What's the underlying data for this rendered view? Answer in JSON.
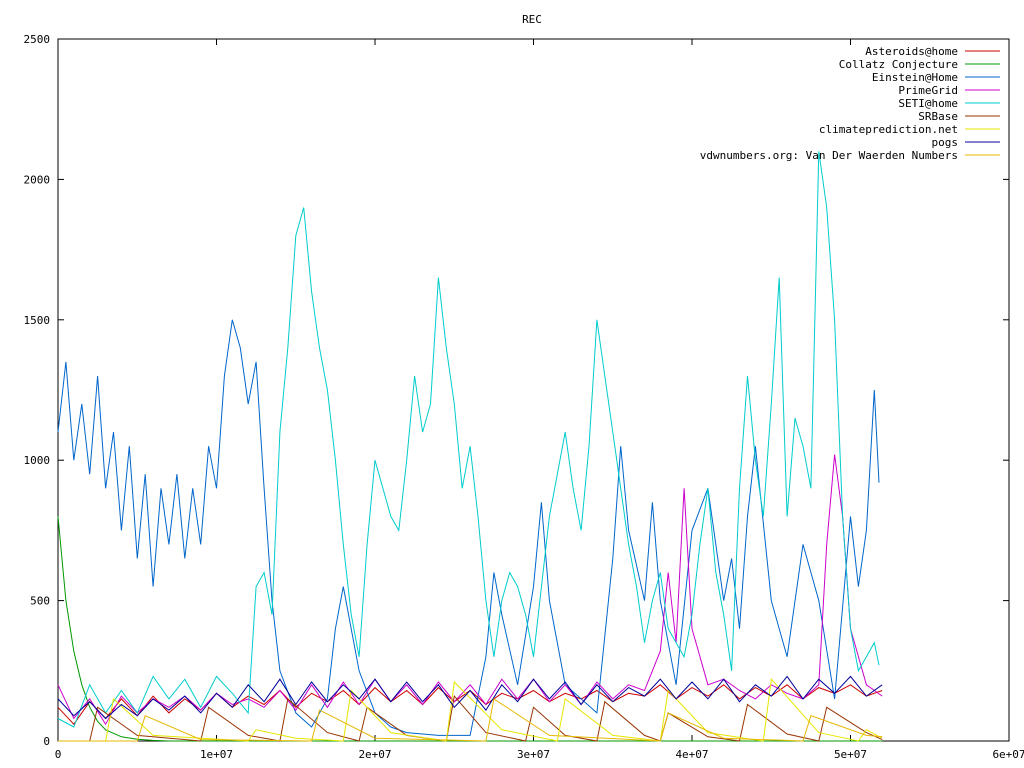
{
  "chart_data": {
    "type": "line",
    "title": "REC",
    "xlabel": "",
    "ylabel": "",
    "xlim": [
      0,
      60000000
    ],
    "ylim": [
      0,
      2500
    ],
    "x_ticks": [
      {
        "value": 0,
        "label": "0"
      },
      {
        "value": 10000000,
        "label": "1e+07"
      },
      {
        "value": 20000000,
        "label": "2e+07"
      },
      {
        "value": 30000000,
        "label": "3e+07"
      },
      {
        "value": 40000000,
        "label": "4e+07"
      },
      {
        "value": 50000000,
        "label": "5e+07"
      },
      {
        "value": 60000000,
        "label": "6e+07"
      }
    ],
    "y_ticks": [
      {
        "value": 0,
        "label": "0"
      },
      {
        "value": 500,
        "label": "500"
      },
      {
        "value": 1000,
        "label": "1000"
      },
      {
        "value": 1500,
        "label": "1500"
      },
      {
        "value": 2000,
        "label": "2000"
      },
      {
        "value": 2500,
        "label": "2500"
      }
    ],
    "grid": false,
    "legend_position": "top-right",
    "series": [
      {
        "name": "Asteroids@home",
        "color": "#cc0000",
        "x": [
          0,
          1000000,
          2000000,
          3000000,
          4000000,
          5000000,
          6000000,
          7000000,
          8000000,
          9000000,
          10000000,
          11000000,
          12000000,
          13000000,
          14000000,
          15000000,
          16000000,
          17000000,
          18000000,
          19000000,
          20000000,
          21000000,
          22000000,
          23000000,
          24000000,
          25000000,
          26000000,
          27000000,
          28000000,
          29000000,
          30000000,
          31000000,
          32000000,
          33000000,
          34000000,
          35000000,
          36000000,
          37000000,
          38000000,
          39000000,
          40000000,
          41000000,
          42000000,
          43000000,
          44000000,
          45000000,
          46000000,
          47000000,
          48000000,
          49000000,
          50000000,
          51000000,
          52000000
        ],
        "y": [
          120,
          60,
          140,
          80,
          150,
          90,
          160,
          100,
          150,
          110,
          170,
          120,
          160,
          130,
          180,
          120,
          170,
          140,
          180,
          130,
          190,
          140,
          180,
          130,
          190,
          140,
          180,
          130,
          170,
          150,
          180,
          140,
          170,
          150,
          180,
          140,
          170,
          160,
          200,
          150,
          190,
          160,
          200,
          150,
          190,
          160,
          200,
          150,
          190,
          170,
          200,
          160,
          180
        ]
      },
      {
        "name": "Collatz Conjecture",
        "color": "#009900",
        "x": [
          0,
          500000,
          1000000,
          1500000,
          2000000,
          2500000,
          3000000,
          4000000,
          5000000,
          6000000,
          7000000,
          8000000,
          52000000
        ],
        "y": [
          800,
          500,
          320,
          200,
          120,
          70,
          40,
          15,
          6,
          2,
          0,
          0,
          0
        ]
      },
      {
        "name": "Einstein@Home",
        "color": "#0066cc",
        "x": [
          0,
          500000,
          1000000,
          1500000,
          2000000,
          2500000,
          3000000,
          3500000,
          4000000,
          4500000,
          5000000,
          5500000,
          6000000,
          6500000,
          7000000,
          7500000,
          8000000,
          8500000,
          9000000,
          9500000,
          10000000,
          10500000,
          11000000,
          11500000,
          12000000,
          12500000,
          13000000,
          13500000,
          14000000,
          15000000,
          16000000,
          17000000,
          17500000,
          18000000,
          19000000,
          20000000,
          21000000,
          22000000,
          24000000,
          26000000,
          27000000,
          27500000,
          28000000,
          29000000,
          30000000,
          30500000,
          31000000,
          32000000,
          34000000,
          35000000,
          35500000,
          36000000,
          37000000,
          37500000,
          38000000,
          39000000,
          40000000,
          41000000,
          42000000,
          42500000,
          43000000,
          43500000,
          44000000,
          45000000,
          46000000,
          47000000,
          48000000,
          49000000,
          50000000,
          50500000,
          51000000,
          51500000,
          51800000
        ],
        "y": [
          1100,
          1350,
          1000,
          1200,
          950,
          1300,
          900,
          1100,
          750,
          1050,
          650,
          950,
          550,
          900,
          700,
          950,
          650,
          900,
          700,
          1050,
          900,
          1300,
          1500,
          1400,
          1200,
          1350,
          900,
          500,
          250,
          100,
          50,
          150,
          400,
          550,
          250,
          100,
          50,
          30,
          20,
          20,
          300,
          600,
          450,
          200,
          550,
          850,
          500,
          200,
          100,
          650,
          1050,
          750,
          500,
          850,
          500,
          200,
          750,
          900,
          500,
          650,
          400,
          800,
          1050,
          500,
          300,
          700,
          500,
          150,
          800,
          550,
          750,
          1250,
          920
        ]
      },
      {
        "name": "PrimeGrid",
        "color": "#cc00cc",
        "x": [
          0,
          1000000,
          2000000,
          3000000,
          4000000,
          5000000,
          6000000,
          7000000,
          8000000,
          9000000,
          10000000,
          11000000,
          12000000,
          13000000,
          14000000,
          15000000,
          16000000,
          17000000,
          18000000,
          19000000,
          20000000,
          21000000,
          22000000,
          23000000,
          24000000,
          25000000,
          26000000,
          27000000,
          28000000,
          29000000,
          30000000,
          31000000,
          32000000,
          33000000,
          34000000,
          35000000,
          36000000,
          37000000,
          37500000,
          38000000,
          38500000,
          39000000,
          39500000,
          40000000,
          41000000,
          42000000,
          43000000,
          44000000,
          45000000,
          46000000,
          47000000,
          48000000,
          48500000,
          49000000,
          49500000,
          50000000,
          51000000,
          52000000
        ],
        "y": [
          200,
          80,
          150,
          60,
          160,
          100,
          150,
          120,
          160,
          110,
          170,
          130,
          150,
          120,
          180,
          110,
          200,
          120,
          210,
          130,
          220,
          140,
          200,
          130,
          210,
          140,
          200,
          130,
          220,
          150,
          220,
          140,
          200,
          130,
          210,
          150,
          200,
          180,
          250,
          320,
          600,
          350,
          900,
          400,
          200,
          220,
          180,
          150,
          200,
          170,
          150,
          200,
          700,
          1020,
          800,
          400,
          200,
          160
        ]
      },
      {
        "name": "SETI@home",
        "color": "#00cccc",
        "x": [
          0,
          1000000,
          2000000,
          3000000,
          4000000,
          5000000,
          6000000,
          7000000,
          8000000,
          9000000,
          10000000,
          11000000,
          12000000,
          12500000,
          13000000,
          13500000,
          14000000,
          14500000,
          15000000,
          15500000,
          16000000,
          16500000,
          17000000,
          17500000,
          18000000,
          18500000,
          19000000,
          19500000,
          20000000,
          21000000,
          21500000,
          22000000,
          22500000,
          23000000,
          23500000,
          24000000,
          24500000,
          25000000,
          25500000,
          26000000,
          26500000,
          27000000,
          27500000,
          28000000,
          28500000,
          29000000,
          29500000,
          30000000,
          31000000,
          32000000,
          32500000,
          33000000,
          33500000,
          34000000,
          34500000,
          35000000,
          35500000,
          36000000,
          36500000,
          37000000,
          37500000,
          38000000,
          38500000,
          39000000,
          39500000,
          40000000,
          40500000,
          41000000,
          41500000,
          42000000,
          42500000,
          43000000,
          43500000,
          44000000,
          44500000,
          45000000,
          45500000,
          46000000,
          46500000,
          47000000,
          47500000,
          48000000,
          48500000,
          49000000,
          49500000,
          50000000,
          50500000,
          51000000,
          51500000,
          51800000
        ],
        "y": [
          80,
          50,
          200,
          100,
          180,
          100,
          230,
          150,
          220,
          120,
          230,
          170,
          100,
          550,
          600,
          450,
          1100,
          1400,
          1800,
          1900,
          1600,
          1400,
          1250,
          1000,
          700,
          450,
          300,
          700,
          1000,
          800,
          750,
          1000,
          1300,
          1100,
          1200,
          1650,
          1400,
          1200,
          900,
          1050,
          800,
          500,
          300,
          500,
          600,
          550,
          450,
          300,
          800,
          1100,
          900,
          750,
          1050,
          1500,
          1300,
          1100,
          900,
          700,
          550,
          350,
          500,
          600,
          400,
          350,
          300,
          450,
          700,
          900,
          600,
          450,
          250,
          900,
          1300,
          1000,
          800,
          1200,
          1650,
          800,
          1150,
          1050,
          900,
          2100,
          1900,
          1500,
          800,
          400,
          250,
          300,
          350,
          270
        ]
      },
      {
        "name": "SRBase",
        "color": "#993300",
        "x": [
          0,
          2000000,
          2500000,
          5000000,
          9000000,
          9500000,
          12000000,
          14000000,
          14500000,
          17000000,
          19000000,
          19500000,
          22000000,
          24500000,
          25000000,
          27000000,
          29500000,
          30000000,
          32000000,
          34000000,
          34500000,
          37000000,
          38000000,
          38500000,
          41000000,
          43000000,
          43500000,
          46000000,
          48000000,
          48500000,
          51000000,
          52000000
        ],
        "y": [
          0,
          0,
          120,
          20,
          0,
          120,
          20,
          0,
          150,
          30,
          0,
          120,
          20,
          0,
          160,
          30,
          0,
          120,
          20,
          0,
          140,
          20,
          0,
          100,
          15,
          0,
          130,
          25,
          0,
          120,
          30,
          5
        ]
      },
      {
        "name": "climateprediction.net",
        "color": "#e6e600",
        "x": [
          0,
          3000000,
          3500000,
          6000000,
          12000000,
          12500000,
          15000000,
          18000000,
          18500000,
          21000000,
          24500000,
          25000000,
          28000000,
          31500000,
          32000000,
          35000000,
          38000000,
          38500000,
          41000000,
          44500000,
          45000000,
          48000000,
          50500000,
          51000000,
          52000000
        ],
        "y": [
          0,
          0,
          150,
          20,
          0,
          40,
          10,
          0,
          180,
          30,
          0,
          210,
          40,
          0,
          150,
          20,
          0,
          180,
          30,
          0,
          220,
          30,
          0,
          40,
          10
        ]
      },
      {
        "name": "pogs",
        "color": "#000099",
        "x": [
          0,
          1000000,
          2000000,
          3000000,
          4000000,
          5000000,
          6000000,
          7000000,
          8000000,
          9000000,
          10000000,
          11000000,
          12000000,
          13000000,
          14000000,
          15000000,
          16000000,
          17000000,
          18000000,
          19000000,
          20000000,
          21000000,
          22000000,
          23000000,
          24000000,
          25000000,
          26000000,
          27000000,
          28000000,
          29000000,
          30000000,
          31000000,
          32000000,
          33000000,
          34000000,
          35000000,
          36000000,
          37000000,
          38000000,
          39000000,
          40000000,
          41000000,
          42000000,
          43000000,
          44000000,
          45000000,
          46000000,
          47000000,
          48000000,
          49000000,
          50000000,
          51000000,
          52000000
        ],
        "y": [
          150,
          90,
          140,
          80,
          130,
          90,
          150,
          110,
          160,
          100,
          170,
          120,
          200,
          140,
          220,
          130,
          210,
          140,
          200,
          150,
          220,
          140,
          210,
          140,
          200,
          120,
          180,
          110,
          200,
          140,
          220,
          150,
          210,
          130,
          200,
          140,
          190,
          160,
          220,
          150,
          210,
          150,
          220,
          140,
          200,
          160,
          230,
          150,
          220,
          170,
          230,
          160,
          200
        ]
      },
      {
        "name": "vdwnumbers.org: Van Der Waerden Numbers",
        "color": "#e6b800",
        "x": [
          0,
          5000000,
          5500000,
          9000000,
          16000000,
          16500000,
          20000000,
          27000000,
          27500000,
          31000000,
          38000000,
          38500000,
          42000000,
          47000000,
          47500000,
          51000000,
          52000000
        ],
        "y": [
          0,
          0,
          90,
          5,
          0,
          110,
          10,
          0,
          150,
          20,
          0,
          100,
          10,
          0,
          90,
          20,
          15
        ]
      }
    ]
  }
}
